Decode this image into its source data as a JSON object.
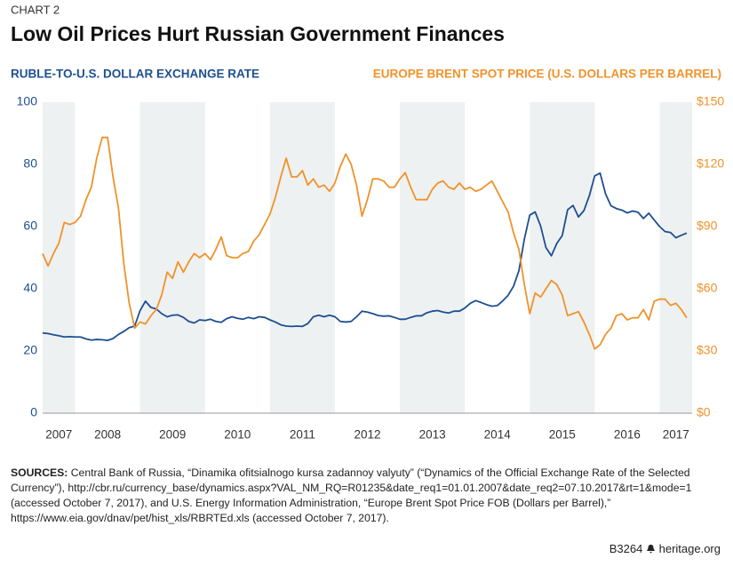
{
  "chart_data": {
    "type": "line",
    "kicker": "CHART 2",
    "title": "Low Oil Prices Hurt Russian Government Finances",
    "y_label": "RUBLE-TO-U.S. DOLLAR EXCHANGE RATE",
    "y2_label": "EUROPE BRENT SPOT PRICE (U.S. DOLLARS PER BARREL)",
    "x": [
      2007.5,
      2007.583,
      2007.667,
      2007.75,
      2007.833,
      2007.917,
      2008,
      2008.083,
      2008.167,
      2008.25,
      2008.333,
      2008.417,
      2008.5,
      2008.583,
      2008.667,
      2008.75,
      2008.833,
      2008.917,
      2009,
      2009.083,
      2009.167,
      2009.25,
      2009.333,
      2009.417,
      2009.5,
      2009.583,
      2009.667,
      2009.75,
      2009.833,
      2009.917,
      2010,
      2010.083,
      2010.167,
      2010.25,
      2010.333,
      2010.417,
      2010.5,
      2010.583,
      2010.667,
      2010.75,
      2010.833,
      2010.917,
      2011,
      2011.083,
      2011.167,
      2011.25,
      2011.333,
      2011.417,
      2011.5,
      2011.583,
      2011.667,
      2011.75,
      2011.833,
      2011.917,
      2012,
      2012.083,
      2012.167,
      2012.25,
      2012.333,
      2012.417,
      2012.5,
      2012.583,
      2012.667,
      2012.75,
      2012.833,
      2012.917,
      2013,
      2013.083,
      2013.167,
      2013.25,
      2013.333,
      2013.417,
      2013.5,
      2013.583,
      2013.667,
      2013.75,
      2013.833,
      2013.917,
      2014,
      2014.083,
      2014.167,
      2014.25,
      2014.333,
      2014.417,
      2014.5,
      2014.583,
      2014.667,
      2014.75,
      2014.833,
      2014.917,
      2015,
      2015.083,
      2015.167,
      2015.25,
      2015.333,
      2015.417,
      2015.5,
      2015.583,
      2015.667,
      2015.75,
      2015.833,
      2015.917,
      2016,
      2016.083,
      2016.167,
      2016.25,
      2016.333,
      2016.417,
      2016.5,
      2016.583,
      2016.667,
      2016.75,
      2016.833,
      2016.917,
      2017,
      2017.083,
      2017.167,
      2017.25,
      2017.333,
      2017.417
    ],
    "series": [
      {
        "name": "Ruble-to-U.S. dollar exchange rate",
        "color": "#1d4f91",
        "axis": "y",
        "values": [
          25.8,
          25.6,
          25.2,
          24.9,
          24.5,
          24.6,
          24.5,
          24.5,
          23.9,
          23.5,
          23.7,
          23.6,
          23.4,
          24,
          25.3,
          26.3,
          27.5,
          28,
          33,
          36,
          34,
          33.5,
          32,
          31,
          31.5,
          31.6,
          30.8,
          29.5,
          29,
          30,
          29.8,
          30.2,
          29.5,
          29.2,
          30.4,
          31,
          30.5,
          30.2,
          30.8,
          30.4,
          31,
          30.8,
          30,
          29.3,
          28.4,
          28,
          27.9,
          28,
          27.9,
          28.8,
          31,
          31.5,
          31,
          31.5,
          31,
          29.5,
          29.3,
          29.5,
          31,
          32.8,
          32.5,
          32,
          31.4,
          31.2,
          31.3,
          30.8,
          30.2,
          30.2,
          30.8,
          31.3,
          31.3,
          32.3,
          32.8,
          33,
          32.5,
          32.2,
          32.8,
          32.8,
          33.8,
          35.3,
          36.2,
          35.6,
          34.9,
          34.4,
          34.6,
          36.1,
          37.9,
          40.8,
          45.8,
          56,
          63.7,
          64.7,
          60.2,
          53.2,
          50.6,
          54.6,
          57.1,
          65.4,
          66.8,
          63.1,
          65.1,
          69.9,
          76.3,
          77.2,
          70.5,
          66.7,
          65.8,
          65.3,
          64.4,
          65,
          64.6,
          62.6,
          64.3,
          62.1,
          60,
          58.4,
          58.1,
          56.4,
          57.2,
          57.9
        ]
      },
      {
        "name": "Europe Brent spot price",
        "color": "#f0922b",
        "axis": "y2",
        "values": [
          77,
          71,
          77,
          82,
          92,
          91,
          92,
          95,
          103,
          109,
          123,
          133,
          133,
          114,
          99,
          72,
          53,
          41,
          44,
          43,
          47,
          50,
          57,
          68,
          65,
          73,
          68,
          73,
          77,
          75,
          77,
          74,
          79,
          85,
          76,
          75,
          75,
          77,
          78,
          83,
          86,
          91,
          96,
          104,
          114,
          123,
          114,
          114,
          117,
          110,
          113,
          109,
          110,
          107,
          111,
          119,
          125,
          120,
          110,
          95,
          103,
          113,
          113,
          112,
          109,
          109,
          113,
          116,
          109,
          103,
          103,
          103,
          108,
          111,
          112,
          109,
          108,
          111,
          108,
          109,
          107,
          108,
          110,
          112,
          107,
          102,
          97,
          87,
          79,
          62,
          48,
          58,
          56,
          60,
          64,
          62,
          57,
          47,
          48,
          49,
          44,
          38,
          31,
          33,
          38,
          41,
          47,
          48,
          45,
          46,
          46,
          50,
          45,
          54,
          55,
          55,
          52,
          53,
          50,
          46
        ]
      }
    ],
    "xlim": [
      2007.5,
      2017.5
    ],
    "xticks": [
      2007,
      2008,
      2009,
      2010,
      2011,
      2012,
      2013,
      2014,
      2015,
      2016,
      2017
    ],
    "shade_alternate_years": true,
    "ylim": [
      0,
      100
    ],
    "yticks": [
      0,
      20,
      40,
      60,
      80,
      100
    ],
    "y2lim": [
      0,
      150
    ],
    "y2ticks": [
      {
        "value": 0,
        "label": "$0"
      },
      {
        "value": 30,
        "label": "$30"
      },
      {
        "value": 60,
        "label": "$60"
      },
      {
        "value": 90,
        "label": "$90"
      },
      {
        "value": 120,
        "label": "$120"
      },
      {
        "value": 150,
        "label": "$150"
      }
    ],
    "sources_label": "SOURCES:",
    "sources": "Central Bank of Russia, “Dinamika ofitsialnogo kursa zadannoy valyuty” (“Dynamics of the Official Exchange Rate of the Selected Currency”), http://cbr.ru/currency_base/dynamics.aspx?VAL_NM_RQ=R01235&date_req1=01.01.2007&date_req2=07.10.2017&rt=1&mode=1 (accessed October 7, 2017), and U.S. Energy Information Administration, “Europe Brent Spot Price FOB (Dollars per Barrel),” https://www.eia.gov/dnav/pet/hist_xls/RBRTEd.xls (accessed October 7, 2017).",
    "report_id": "B3264",
    "site": "heritage.org"
  }
}
